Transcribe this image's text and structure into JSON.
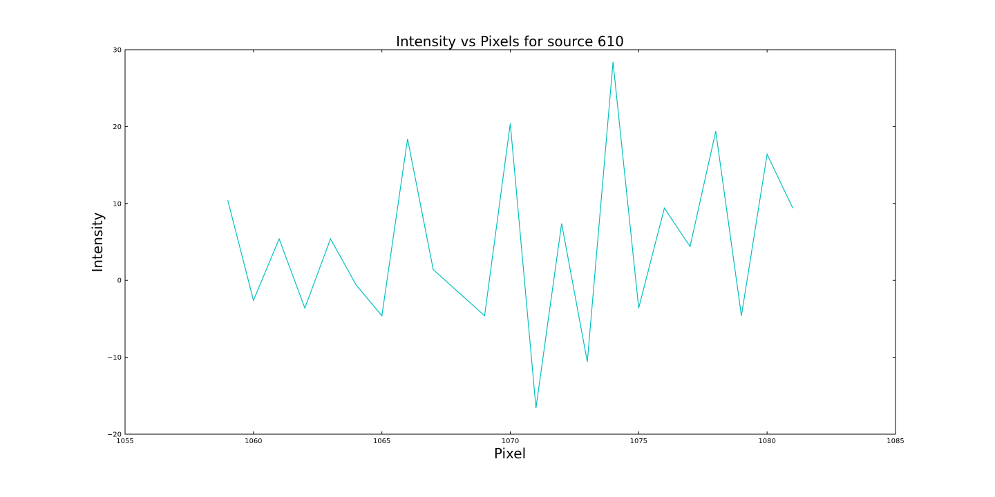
{
  "chart_data": {
    "type": "line",
    "title": "Intensity vs Pixels for source 610",
    "xlabel": "Pixel",
    "ylabel": "Intensity",
    "xlim": [
      1055,
      1085
    ],
    "ylim": [
      -20,
      30
    ],
    "xticks": [
      1055,
      1060,
      1065,
      1070,
      1075,
      1080,
      1085
    ],
    "yticks": [
      -20,
      -10,
      0,
      10,
      20,
      30
    ],
    "grid": false,
    "series": [
      {
        "color": "#00bfbf",
        "x": [
          1059,
          1060,
          1061,
          1062,
          1063,
          1064,
          1065,
          1066,
          1067,
          1069,
          1070,
          1071,
          1072,
          1073,
          1074,
          1075,
          1076,
          1077,
          1078,
          1079,
          1080,
          1081
        ],
        "y": [
          10.4,
          -2.6,
          5.4,
          -3.6,
          5.4,
          -0.6,
          -4.6,
          18.4,
          1.4,
          -4.6,
          20.4,
          -16.6,
          7.4,
          -10.6,
          28.4,
          -3.6,
          9.4,
          4.4,
          19.4,
          -4.6,
          16.4,
          9.4
        ]
      }
    ]
  }
}
